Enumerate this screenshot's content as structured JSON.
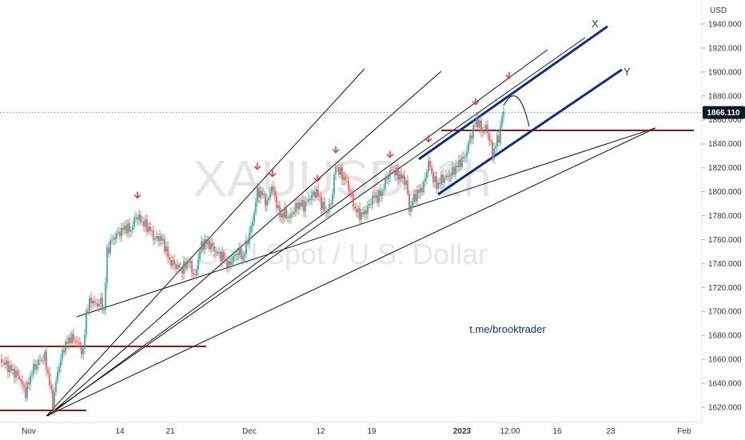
{
  "chart_data": {
    "type": "candlestick",
    "symbol_watermark": "XAUUSD, 1h",
    "watermark_subtitle": "Gold Spot / U.S. Dollar",
    "currency": "USD",
    "last_price": "1866.110",
    "link_text": "t.me/brooktrader",
    "label_x": "X",
    "label_y": "Y",
    "y_axis": {
      "min": 1610,
      "max": 1955,
      "ticks": [
        "1940.000",
        "1920.000",
        "1900.000",
        "1880.000",
        "1860.000",
        "1840.000",
        "1820.000",
        "1800.000",
        "1780.000",
        "1760.000",
        "1740.000",
        "1720.000",
        "1700.000",
        "1680.000",
        "1660.000",
        "1640.000",
        "1620.000"
      ]
    },
    "x_axis": {
      "ticks": [
        {
          "label": "Nov",
          "bold": false
        },
        {
          "label": "14",
          "bold": false
        },
        {
          "label": "21",
          "bold": false
        },
        {
          "label": "Dec",
          "bold": false
        },
        {
          "label": "12",
          "bold": false
        },
        {
          "label": "19",
          "bold": false
        },
        {
          "label": "2023",
          "bold": true
        },
        {
          "label": "12:00",
          "bold": false
        },
        {
          "label": "16",
          "bold": false
        },
        {
          "label": "23",
          "bold": false
        },
        {
          "label": "Feb",
          "bold": false
        }
      ]
    },
    "price_path": [
      [
        0,
        1660
      ],
      [
        8,
        1655
      ],
      [
        16,
        1650
      ],
      [
        24,
        1645
      ],
      [
        32,
        1632
      ],
      [
        40,
        1650
      ],
      [
        48,
        1658
      ],
      [
        56,
        1662
      ],
      [
        62,
        1640
      ],
      [
        66,
        1622
      ],
      [
        72,
        1650
      ],
      [
        80,
        1670
      ],
      [
        88,
        1678
      ],
      [
        96,
        1675
      ],
      [
        104,
        1665
      ],
      [
        108,
        1700
      ],
      [
        114,
        1710
      ],
      [
        120,
        1705
      ],
      [
        126,
        1708
      ],
      [
        130,
        1700
      ],
      [
        134,
        1750
      ],
      [
        140,
        1760
      ],
      [
        148,
        1765
      ],
      [
        156,
        1770
      ],
      [
        164,
        1768
      ],
      [
        170,
        1780
      ],
      [
        176,
        1776
      ],
      [
        182,
        1772
      ],
      [
        188,
        1768
      ],
      [
        194,
        1760
      ],
      [
        200,
        1762
      ],
      [
        206,
        1755
      ],
      [
        212,
        1742
      ],
      [
        220,
        1738
      ],
      [
        228,
        1735
      ],
      [
        236,
        1742
      ],
      [
        244,
        1728
      ],
      [
        250,
        1752
      ],
      [
        256,
        1758
      ],
      [
        264,
        1755
      ],
      [
        272,
        1748
      ],
      [
        280,
        1745
      ],
      [
        286,
        1738
      ],
      [
        292,
        1745
      ],
      [
        298,
        1750
      ],
      [
        304,
        1745
      ],
      [
        310,
        1760
      ],
      [
        316,
        1775
      ],
      [
        322,
        1800
      ],
      [
        328,
        1798
      ],
      [
        334,
        1790
      ],
      [
        340,
        1805
      ],
      [
        346,
        1790
      ],
      [
        350,
        1780
      ],
      [
        356,
        1782
      ],
      [
        362,
        1778
      ],
      [
        368,
        1785
      ],
      [
        374,
        1790
      ],
      [
        380,
        1788
      ],
      [
        388,
        1795
      ],
      [
        396,
        1800
      ],
      [
        402,
        1790
      ],
      [
        408,
        1782
      ],
      [
        414,
        1790
      ],
      [
        420,
        1822
      ],
      [
        426,
        1815
      ],
      [
        432,
        1810
      ],
      [
        438,
        1800
      ],
      [
        444,
        1785
      ],
      [
        452,
        1780
      ],
      [
        460,
        1786
      ],
      [
        466,
        1795
      ],
      [
        472,
        1795
      ],
      [
        478,
        1800
      ],
      [
        484,
        1812
      ],
      [
        490,
        1818
      ],
      [
        496,
        1815
      ],
      [
        502,
        1812
      ],
      [
        508,
        1808
      ],
      [
        512,
        1785
      ],
      [
        518,
        1795
      ],
      [
        524,
        1800
      ],
      [
        530,
        1805
      ],
      [
        536,
        1825
      ],
      [
        540,
        1815
      ],
      [
        546,
        1805
      ],
      [
        552,
        1810
      ],
      [
        558,
        1812
      ],
      [
        564,
        1815
      ],
      [
        570,
        1820
      ],
      [
        576,
        1825
      ],
      [
        582,
        1830
      ],
      [
        588,
        1845
      ],
      [
        592,
        1852
      ],
      [
        596,
        1860
      ],
      [
        600,
        1855
      ],
      [
        604,
        1850
      ],
      [
        608,
        1854
      ],
      [
        612,
        1845
      ],
      [
        616,
        1830
      ],
      [
        620,
        1840
      ],
      [
        624,
        1845
      ],
      [
        628,
        1862
      ],
      [
        630,
        1866
      ]
    ],
    "arrow_marks": [
      {
        "x": 172,
        "price": 1788
      },
      {
        "x": 322,
        "price": 1812
      },
      {
        "x": 341,
        "price": 1806
      },
      {
        "x": 397,
        "price": 1802
      },
      {
        "x": 420,
        "price": 1826
      },
      {
        "x": 488,
        "price": 1822
      },
      {
        "x": 536,
        "price": 1835
      },
      {
        "x": 595,
        "price": 1866
      },
      {
        "x": 637,
        "price": 1888
      }
    ]
  },
  "colors": {
    "up": "#26a69a",
    "down": "#ef5350",
    "arrow": "#e53935",
    "channel": "#0d2f8c",
    "support": "#8b1a1a",
    "trend": "#111111",
    "link": "#0d2f8c",
    "price_label_bg": "#131722"
  }
}
